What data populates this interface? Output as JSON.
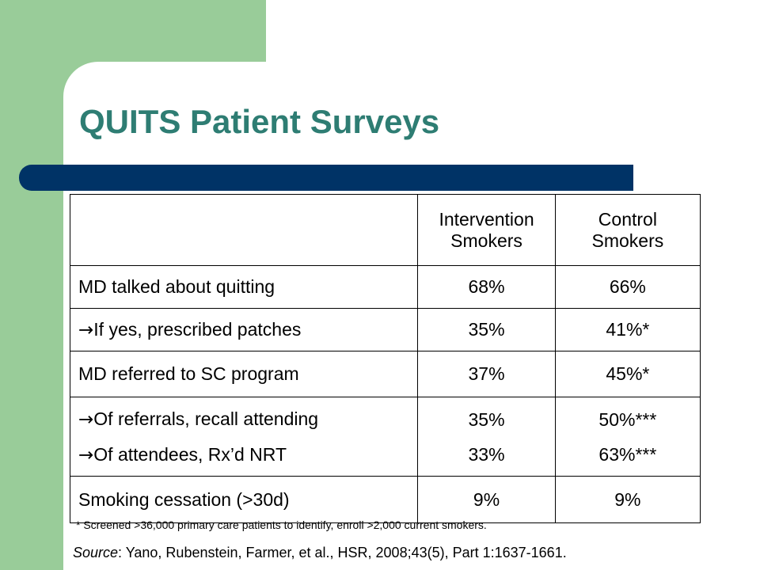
{
  "slide": {
    "title": "QUITS Patient Surveys",
    "accent_color": "#2e7d73",
    "bar_color": "#003366",
    "side_color": "#99cc99"
  },
  "table": {
    "headers": [
      "",
      "Intervention Smokers",
      "Control Smokers"
    ],
    "header_lines": {
      "intervention": [
        "Intervention",
        "Smokers"
      ],
      "control": [
        "Control",
        "Smokers"
      ]
    },
    "arrow_glyph": "→",
    "rows": [
      {
        "label": "MD talked about quitting",
        "intervention": "68%",
        "control": "66%"
      },
      {
        "label": "If yes, prescribed patches",
        "arrow": true,
        "intervention": "35%",
        "control": "41%*"
      },
      {
        "label": "MD referred to SC program",
        "intervention": "37%",
        "control": "45%*"
      },
      {
        "label": "Of referrals, recall attending",
        "arrow": true,
        "intervention": "35%",
        "control": "50%***"
      },
      {
        "label": "Of attendees, Rx’d NRT",
        "arrow": true,
        "intervention": "33%",
        "control": "63%***"
      },
      {
        "label": "Smoking cessation (>30d)",
        "intervention": "9%",
        "control": "9%"
      }
    ]
  },
  "footnote": "* Screened >36,000 primary care patients to identify, enroll >2,000 current smokers.",
  "source": {
    "label": "Source",
    "text": ":  Yano, Rubenstein, Farmer, et al., HSR, 2008;43(5), Part 1:1637-1661."
  }
}
